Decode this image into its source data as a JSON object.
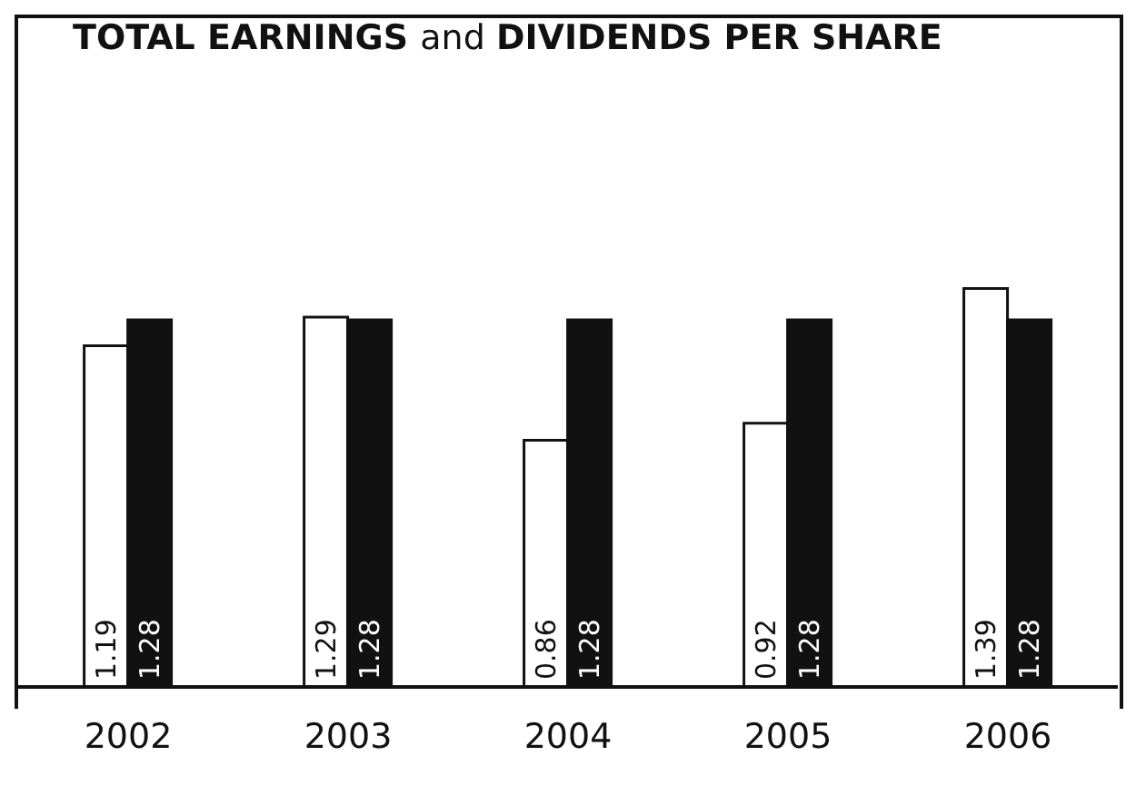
{
  "chart_data": {
    "type": "bar",
    "title": "TOTAL EARNINGS and DIVIDENDS PER SHARE",
    "categories": [
      "2002",
      "2003",
      "2004",
      "2005",
      "2006"
    ],
    "series": [
      {
        "color": "#ffffff",
        "values": [
          1.19,
          1.29,
          0.86,
          0.92,
          1.39
        ]
      },
      {
        "color": "#111111",
        "values": [
          1.28,
          1.28,
          1.28,
          1.28,
          1.28
        ]
      }
    ],
    "data_labels": true,
    "legend": false,
    "grid": false
  }
}
